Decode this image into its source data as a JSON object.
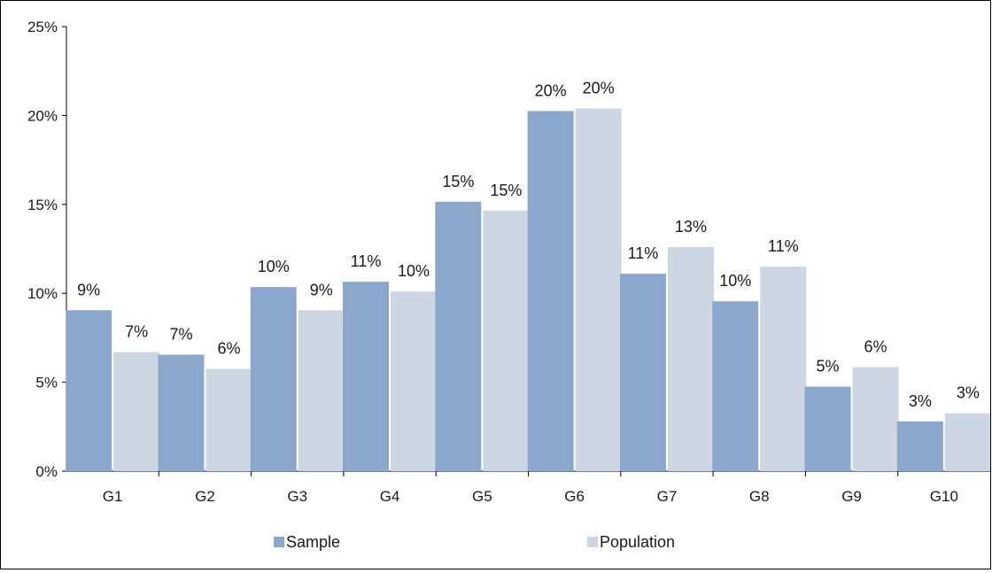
{
  "chart_data": {
    "type": "bar",
    "title": "",
    "xlabel": "",
    "ylabel": "",
    "categories": [
      "G1",
      "G2",
      "G3",
      "G4",
      "G5",
      "G6",
      "G7",
      "G8",
      "G9",
      "G10"
    ],
    "series": [
      {
        "name": "Sample",
        "color": "#8ba7cc",
        "values": [
          0.0905,
          0.0655,
          0.1035,
          0.1065,
          0.1515,
          0.2025,
          0.111,
          0.0955,
          0.0475,
          0.028
        ],
        "labels": [
          "9%",
          "7%",
          "10%",
          "11%",
          "15%",
          "20%",
          "11%",
          "10%",
          "5%",
          "3%"
        ]
      },
      {
        "name": "Population",
        "color": "#cdd7e3",
        "values": [
          0.067,
          0.0575,
          0.0905,
          0.101,
          0.1465,
          0.204,
          0.126,
          0.115,
          0.0585,
          0.0325
        ],
        "labels": [
          "7%",
          "6%",
          "9%",
          "10%",
          "15%",
          "20%",
          "13%",
          "11%",
          "6%",
          "3%"
        ]
      }
    ],
    "ylim": [
      0,
      0.25
    ],
    "yticks": [
      0,
      0.05,
      0.1,
      0.15,
      0.2,
      0.25
    ],
    "ytick_labels": [
      "0%",
      "5%",
      "10%",
      "15%",
      "20%",
      "25%"
    ],
    "grid": false,
    "legend_position": "bottom"
  }
}
